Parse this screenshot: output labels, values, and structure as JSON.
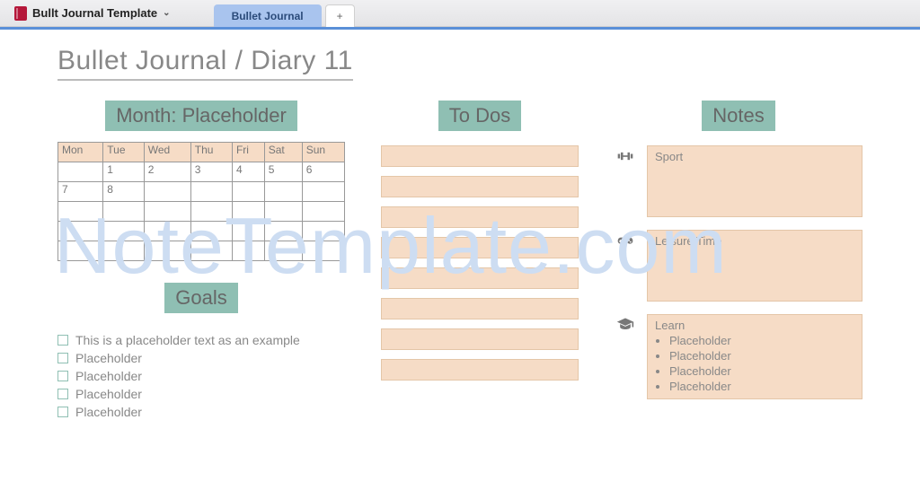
{
  "toolbar": {
    "notebook_name": "Bullt Journal Template",
    "active_tab": "Bullet Journal",
    "add_tab": "+"
  },
  "page": {
    "title": "Bullet Journal / Diary 11"
  },
  "month": {
    "header": "Month: Placeholder",
    "days": [
      "Mon",
      "Tue",
      "Wed",
      "Thu",
      "Fri",
      "Sat",
      "Sun"
    ],
    "rows": [
      [
        "",
        "1",
        "2",
        "3",
        "4",
        "5",
        "6"
      ],
      [
        "7",
        "8",
        "",
        "",
        "",
        "",
        ""
      ],
      [
        "",
        "",
        "",
        "",
        "",
        "",
        ""
      ],
      [
        "",
        "",
        "",
        "",
        "",
        "",
        ""
      ],
      [
        "",
        "",
        "",
        "",
        "",
        "",
        ""
      ]
    ]
  },
  "goals": {
    "header": "Goals",
    "items": [
      "This is a placeholder text as an example",
      "Placeholder",
      "Placeholder",
      "Placeholder",
      "Placeholder"
    ]
  },
  "todos": {
    "header": "To Dos",
    "count": 8
  },
  "notes": {
    "header": "Notes",
    "sections": [
      {
        "icon": "dumbbell",
        "title": "Sport",
        "items": []
      },
      {
        "icon": "gamepad",
        "title": "Leisure Time",
        "items": []
      },
      {
        "icon": "gradcap",
        "title": "Learn",
        "items": [
          "Placeholder",
          "Placeholder",
          "Placeholder",
          "Placeholder"
        ]
      }
    ]
  },
  "watermark": "NoteTemplate.com",
  "colors": {
    "accent_teal": "#8fbfb3",
    "peach_fill": "#f6dcc6",
    "tab_blue": "#a9c4ee",
    "watermark": "#cdddf2",
    "text_gray": "#888888"
  }
}
